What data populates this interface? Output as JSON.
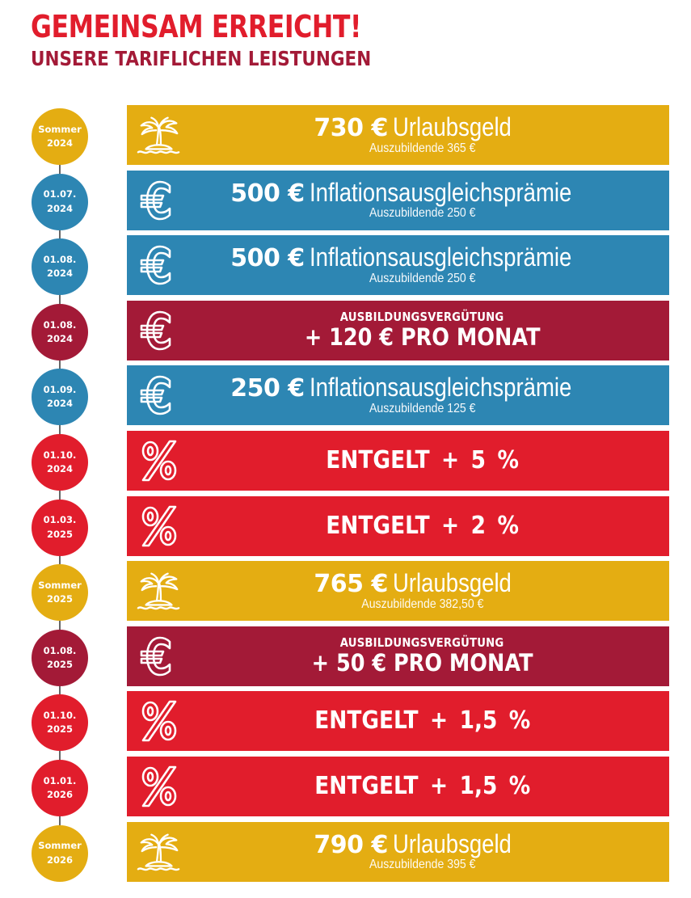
{
  "header": {
    "title": "GEMEINSAM ERREICHT!",
    "subtitle": "UNSERE TARIFLICHEN LEISTUNGEN"
  },
  "colors": {
    "yellow": "#e4ad12",
    "blue": "#2d86b3",
    "bordeaux": "#a31a37",
    "red": "#e11d2c",
    "timeline": "#666666"
  },
  "milestones": [
    {
      "date_line1": "Sommer",
      "date_line2": "2024",
      "color": "#e4ad12",
      "type": "amount",
      "icon": "palm-island-icon",
      "amount": "730 €",
      "label": "Urlaubsgeld",
      "sub": "Auszubildende 365 €"
    },
    {
      "date_line1": "01.07.",
      "date_line2": "2024",
      "color": "#2d86b3",
      "type": "amount",
      "icon": "euro-icon",
      "amount": "500 €",
      "label": "Inflationsausgleichsprämie",
      "sub": "Auszubildende 250 €"
    },
    {
      "date_line1": "01.08.",
      "date_line2": "2024",
      "color": "#2d86b3",
      "type": "amount",
      "icon": "euro-icon",
      "amount": "500 €",
      "label": "Inflationsausgleichsprämie",
      "sub": "Auszubildende 250 €"
    },
    {
      "date_line1": "01.08.",
      "date_line2": "2024",
      "color": "#a31a37",
      "type": "heading",
      "icon": "euro-icon",
      "small": "AUSBILDUNGSVERGÜTUNG",
      "big": "+ 120 € PRO MONAT"
    },
    {
      "date_line1": "01.09.",
      "date_line2": "2024",
      "color": "#2d86b3",
      "type": "amount",
      "icon": "euro-icon",
      "amount": "250 €",
      "label": "Inflationsausgleichsprämie",
      "sub": "Auszubildende 125 €"
    },
    {
      "date_line1": "01.10.",
      "date_line2": "2024",
      "color": "#e11d2c",
      "type": "percent",
      "icon": "percent-icon",
      "text": "ENTGELT + 5 %"
    },
    {
      "date_line1": "01.03.",
      "date_line2": "2025",
      "color": "#e11d2c",
      "type": "percent",
      "icon": "percent-icon",
      "text": "ENTGELT + 2 %"
    },
    {
      "date_line1": "Sommer",
      "date_line2": "2025",
      "color": "#e4ad12",
      "type": "amount",
      "icon": "palm-island-icon",
      "amount": "765 €",
      "label": "Urlaubsgeld",
      "sub": "Auszubildende 382,50 €"
    },
    {
      "date_line1": "01.08.",
      "date_line2": "2025",
      "color": "#a31a37",
      "type": "heading",
      "icon": "euro-icon",
      "small": "AUSBILDUNGSVERGÜTUNG",
      "big": "+ 50 € PRO MONAT"
    },
    {
      "date_line1": "01.10.",
      "date_line2": "2025",
      "color": "#e11d2c",
      "type": "percent",
      "icon": "percent-icon",
      "text": "ENTGELT + 1,5 %"
    },
    {
      "date_line1": "01.01.",
      "date_line2": "2026",
      "color": "#e11d2c",
      "type": "percent",
      "icon": "percent-icon",
      "text": "ENTGELT + 1,5 %"
    },
    {
      "date_line1": "Sommer",
      "date_line2": "2026",
      "color": "#e4ad12",
      "type": "amount",
      "icon": "palm-island-icon",
      "amount": "790 €",
      "label": "Urlaubsgeld",
      "sub": "Auszubildende 395 €"
    }
  ]
}
